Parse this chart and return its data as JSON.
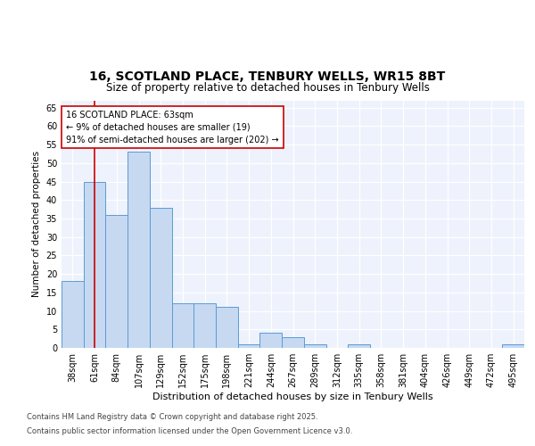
{
  "title": "16, SCOTLAND PLACE, TENBURY WELLS, WR15 8BT",
  "subtitle": "Size of property relative to detached houses in Tenbury Wells",
  "xlabel": "Distribution of detached houses by size in Tenbury Wells",
  "ylabel": "Number of detached properties",
  "categories": [
    "38sqm",
    "61sqm",
    "84sqm",
    "107sqm",
    "129sqm",
    "152sqm",
    "175sqm",
    "198sqm",
    "221sqm",
    "244sqm",
    "267sqm",
    "289sqm",
    "312sqm",
    "335sqm",
    "358sqm",
    "381sqm",
    "404sqm",
    "426sqm",
    "449sqm",
    "472sqm",
    "495sqm"
  ],
  "values": [
    18,
    45,
    36,
    53,
    38,
    12,
    12,
    11,
    1,
    4,
    3,
    1,
    0,
    1,
    0,
    0,
    0,
    0,
    0,
    0,
    1
  ],
  "bar_color": "#c6d9f1",
  "bar_edge_color": "#5b9bd5",
  "red_line_x": 1.0,
  "annotation_text": "16 SCOTLAND PLACE: 63sqm\n← 9% of detached houses are smaller (19)\n91% of semi-detached houses are larger (202) →",
  "annotation_box_facecolor": "#ffffff",
  "annotation_box_edgecolor": "#cc0000",
  "ylim_max": 67,
  "yticks": [
    0,
    5,
    10,
    15,
    20,
    25,
    30,
    35,
    40,
    45,
    50,
    55,
    60,
    65
  ],
  "footer_line1": "Contains HM Land Registry data © Crown copyright and database right 2025.",
  "footer_line2": "Contains public sector information licensed under the Open Government Licence v3.0.",
  "bg_color": "#edf2fc",
  "grid_color": "#ffffff",
  "title_fontsize": 10,
  "subtitle_fontsize": 8.5,
  "ylabel_fontsize": 7.5,
  "xlabel_fontsize": 8,
  "tick_fontsize": 7,
  "annot_fontsize": 7,
  "footer_fontsize": 6
}
